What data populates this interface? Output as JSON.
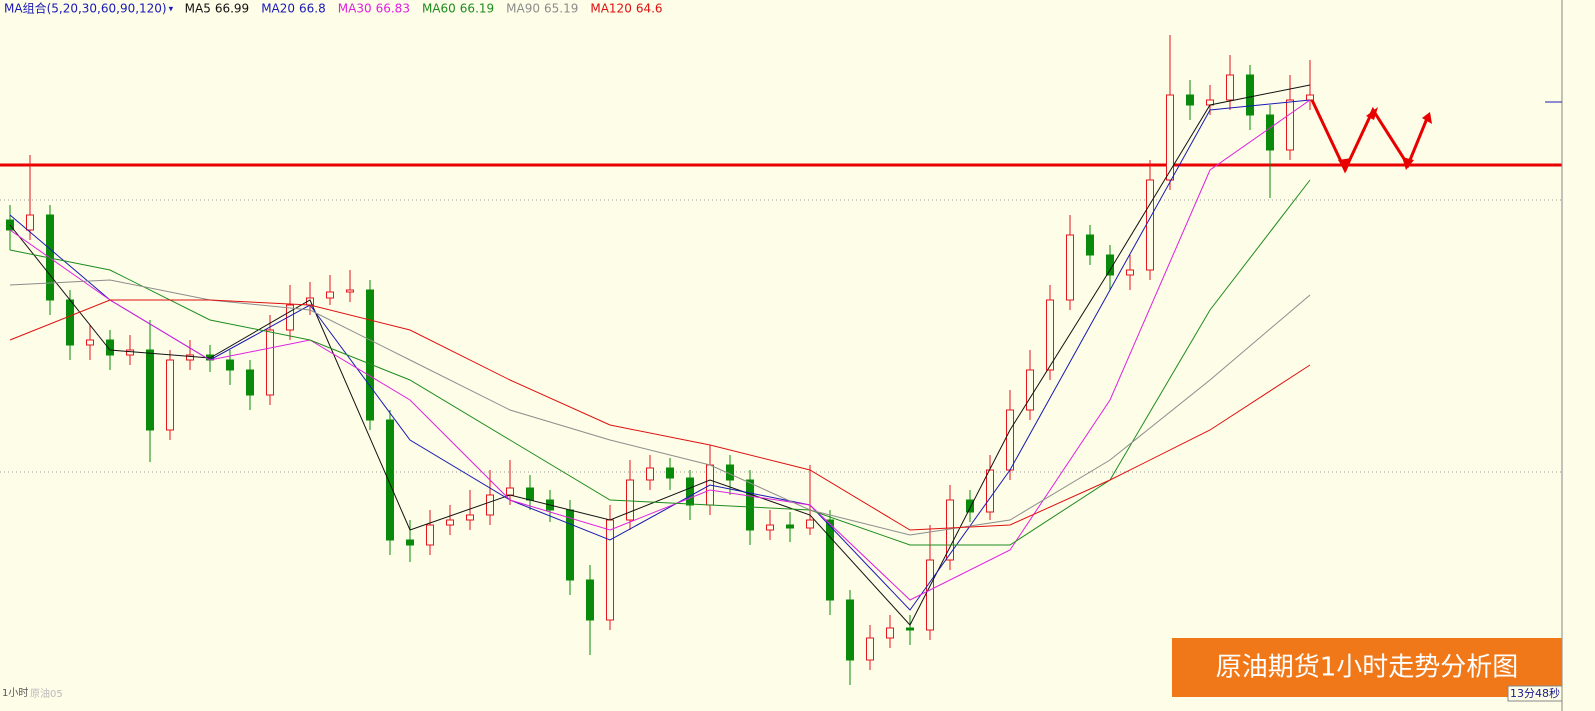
{
  "chart_data": {
    "type": "candlestick",
    "indicator": "MA组合(5,20,30,60,90,120)",
    "title": "原油期货1小时走势分析图",
    "period": "1小时",
    "symbol": "原油05",
    "countdown": "13分48秒",
    "ylim": [
      60.6,
      67.6
    ],
    "background": "#fdfde8",
    "up_color": "#e8141e",
    "down_color": "#0a8a0a",
    "open": [
      65.4,
      65.3,
      65.45,
      64.6,
      64.15,
      64.2,
      64.05,
      64.1,
      63.3,
      64.0,
      64.05,
      64.0,
      63.9,
      63.65,
      64.3,
      64.55,
      64.62,
      64.68,
      64.7,
      63.4,
      62.2,
      62.15,
      62.35,
      62.4,
      62.45,
      62.65,
      62.72,
      62.6,
      62.5,
      61.8,
      61.4,
      62.4,
      62.8,
      62.92,
      62.82,
      62.55,
      62.95,
      62.8,
      62.3,
      62.35,
      62.32,
      62.4,
      61.6,
      61.0,
      61.22,
      61.32,
      61.3,
      62.0,
      62.6,
      62.48,
      62.9,
      63.5,
      63.9,
      64.6,
      65.25,
      65.05,
      64.85,
      64.9,
      65.8,
      66.65,
      66.55,
      66.6,
      66.85,
      66.45,
      66.1,
      66.6
    ],
    "close": [
      65.3,
      65.45,
      64.6,
      64.15,
      64.2,
      64.05,
      64.1,
      63.3,
      64.0,
      64.05,
      64.0,
      63.9,
      63.65,
      64.3,
      64.55,
      64.62,
      64.68,
      64.7,
      63.4,
      62.2,
      62.15,
      62.35,
      62.4,
      62.45,
      62.65,
      62.72,
      62.6,
      62.5,
      61.8,
      61.4,
      62.4,
      62.8,
      62.92,
      62.82,
      62.55,
      62.95,
      62.8,
      62.3,
      62.35,
      62.32,
      62.4,
      61.6,
      61.0,
      61.22,
      61.32,
      61.3,
      62.0,
      62.6,
      62.48,
      62.9,
      63.5,
      63.9,
      64.6,
      65.25,
      65.05,
      64.85,
      64.9,
      65.8,
      66.65,
      66.55,
      66.6,
      66.85,
      66.45,
      66.1,
      66.6,
      66.65
    ],
    "high": [
      65.55,
      66.05,
      65.55,
      64.7,
      64.35,
      64.3,
      64.25,
      64.4,
      64.1,
      64.2,
      64.15,
      64.1,
      64.0,
      64.45,
      64.75,
      64.78,
      64.85,
      64.9,
      64.8,
      63.5,
      62.4,
      62.5,
      62.55,
      62.7,
      62.9,
      63.0,
      62.85,
      62.7,
      62.6,
      61.95,
      62.55,
      63.0,
      63.05,
      63.02,
      62.9,
      63.15,
      63.05,
      62.9,
      62.5,
      62.48,
      62.95,
      62.5,
      61.7,
      61.35,
      61.45,
      61.45,
      62.35,
      62.75,
      62.7,
      63.05,
      63.7,
      64.1,
      64.75,
      65.45,
      65.35,
      65.15,
      65.05,
      66.0,
      67.25,
      66.8,
      66.75,
      67.05,
      66.95,
      66.55,
      66.85,
      67.0
    ],
    "low": [
      65.1,
      65.2,
      64.45,
      64.0,
      64.0,
      63.9,
      63.95,
      62.98,
      63.2,
      63.9,
      63.88,
      63.75,
      63.5,
      63.55,
      64.2,
      64.45,
      64.55,
      64.58,
      63.3,
      62.05,
      61.98,
      62.05,
      62.25,
      62.3,
      62.35,
      62.55,
      62.5,
      62.38,
      61.65,
      61.05,
      61.3,
      62.3,
      62.7,
      62.7,
      62.4,
      62.45,
      62.65,
      62.15,
      62.2,
      62.18,
      62.25,
      61.45,
      60.75,
      60.9,
      61.12,
      61.15,
      61.2,
      61.9,
      62.38,
      62.4,
      62.8,
      63.4,
      63.8,
      64.5,
      64.95,
      64.7,
      64.7,
      64.8,
      65.7,
      66.4,
      66.45,
      66.5,
      66.3,
      65.62,
      66.0,
      66.5
    ],
    "ma_x": [
      0,
      5,
      10,
      15,
      20,
      25,
      30,
      35,
      40,
      45,
      50,
      55,
      60,
      65
    ],
    "series": [
      {
        "name": "MA5",
        "latest": 66.99,
        "color": "#111111",
        "values": [
          65.35,
          64.1,
          64.02,
          64.6,
          62.3,
          62.65,
          62.4,
          62.8,
          62.45,
          61.35,
          63.3,
          64.9,
          66.55,
          66.75
        ]
      },
      {
        "name": "MA20",
        "latest": 66.8,
        "color": "#1a1ab4",
        "values": [
          65.45,
          64.6,
          64.0,
          64.55,
          63.2,
          62.6,
          62.2,
          62.75,
          62.55,
          61.5,
          62.9,
          64.7,
          66.5,
          66.6
        ]
      },
      {
        "name": "MA30",
        "latest": 66.83,
        "color": "#e020e0",
        "values": [
          65.3,
          64.6,
          64.0,
          64.2,
          63.6,
          62.6,
          62.3,
          62.7,
          62.55,
          61.6,
          62.1,
          63.6,
          65.9,
          66.6
        ]
      },
      {
        "name": "MA60",
        "latest": 66.19,
        "color": "#1e8c1e",
        "values": [
          65.1,
          64.9,
          64.4,
          64.2,
          63.8,
          63.2,
          62.6,
          62.55,
          62.5,
          62.15,
          62.15,
          62.8,
          64.5,
          65.8
        ]
      },
      {
        "name": "MA90",
        "latest": 65.19,
        "color": "#8c8c8c",
        "values": [
          64.75,
          64.8,
          64.6,
          64.5,
          64.0,
          63.5,
          63.2,
          62.95,
          62.5,
          62.25,
          62.4,
          63.0,
          63.8,
          64.65
        ]
      },
      {
        "name": "MA120",
        "latest": 64.6,
        "color": "#e01010",
        "values": [
          64.2,
          64.6,
          64.6,
          64.55,
          64.3,
          63.8,
          63.35,
          63.15,
          62.9,
          62.3,
          62.35,
          62.8,
          63.3,
          63.95
        ]
      }
    ],
    "resistance": 65.95,
    "resistance_color": "#e80000",
    "dotted_levels": [
      65.6,
      62.88
    ]
  }
}
